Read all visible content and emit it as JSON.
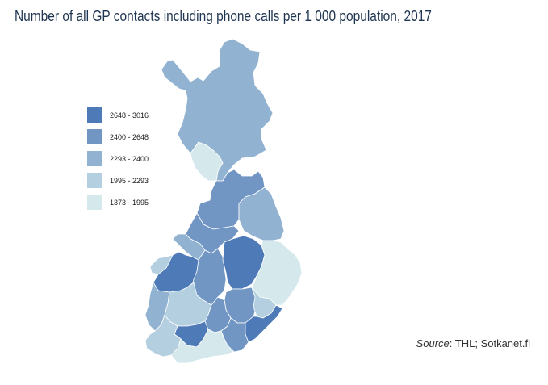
{
  "title": "Number of all GP contacts including phone calls per 1 000 population, 2017",
  "legend": [
    {
      "label": "2648 - 3016",
      "color": "#4e7bb8"
    },
    {
      "label": "2400 - 2648",
      "color": "#7196c4"
    },
    {
      "label": "2293 - 2400",
      "color": "#91b3d1"
    },
    {
      "label": "1995 - 2293",
      "color": "#b3cfe0"
    },
    {
      "label": "1373 - 1995",
      "color": "#d5e9ed"
    }
  ],
  "source": {
    "label": "Source",
    "text": ": THL; Sotkanet.fi"
  },
  "regions": [
    {
      "name": "Lapland",
      "class": 2
    },
    {
      "name": "Western Lapland",
      "class": 4
    },
    {
      "name": "North Ostrobothnia",
      "class": 1
    },
    {
      "name": "Kainuu",
      "class": 2
    },
    {
      "name": "Central Ostrobothnia",
      "class": 1
    },
    {
      "name": "Ostrobothnia",
      "class": 2
    },
    {
      "name": "South Ostrobothnia",
      "class": 0
    },
    {
      "name": "Central Finland",
      "class": 1
    },
    {
      "name": "North Savo",
      "class": 0
    },
    {
      "name": "North Karelia",
      "class": 4
    },
    {
      "name": "South Savo",
      "class": 1
    },
    {
      "name": "Etela-Savo east",
      "class": 3
    },
    {
      "name": "Satakunta",
      "class": 2
    },
    {
      "name": "Pirkanmaa",
      "class": 3
    },
    {
      "name": "Kanta-Hame",
      "class": 0
    },
    {
      "name": "Paijat-Hame",
      "class": 1
    },
    {
      "name": "Kymenlaakso",
      "class": 1
    },
    {
      "name": "South Karelia",
      "class": 0
    },
    {
      "name": "Southwest Finland",
      "class": 3
    },
    {
      "name": "Uusimaa",
      "class": 4
    },
    {
      "name": "Aland west coast",
      "class": 3
    }
  ]
}
